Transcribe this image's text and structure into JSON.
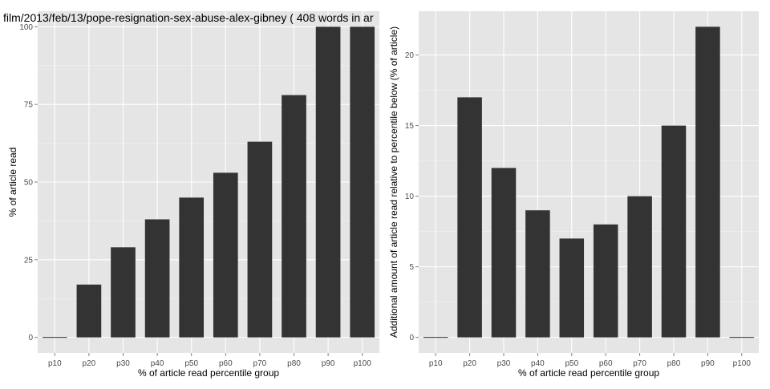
{
  "chart_data": [
    {
      "type": "bar",
      "title": "film/2013/feb/13/pope-resignation-sex-abuse-alex-gibney ( 408 words in ar",
      "xlabel": "% of article read percentile group",
      "ylabel": "% of article read",
      "categories": [
        "p10",
        "p20",
        "p30",
        "p40",
        "p50",
        "p60",
        "p70",
        "p80",
        "p90",
        "p100"
      ],
      "values": [
        0,
        17,
        29,
        38,
        45,
        53,
        63,
        78,
        100,
        100
      ],
      "ylim": [
        -5,
        105
      ],
      "yticks": [
        0,
        25,
        50,
        75,
        100
      ],
      "grid": true,
      "colors": {
        "bar": "#333333",
        "panel": "#e5e5e5",
        "grid_major": "#ffffff",
        "grid_minor": "#f2f2f2"
      }
    },
    {
      "type": "bar",
      "title": "",
      "xlabel": "% of article read percentile group",
      "ylabel": "Additional amount of article read relative to percentile below (% of article)",
      "categories": [
        "p10",
        "p20",
        "p30",
        "p40",
        "p50",
        "p60",
        "p70",
        "p80",
        "p90",
        "p100"
      ],
      "values": [
        0,
        17,
        12,
        9,
        7,
        8,
        10,
        15,
        22,
        0
      ],
      "ylim": [
        -1.1,
        23.1
      ],
      "yticks": [
        0,
        5,
        10,
        15,
        20
      ],
      "grid": true,
      "colors": {
        "bar": "#333333",
        "panel": "#e5e5e5",
        "grid_major": "#ffffff",
        "grid_minor": "#f2f2f2"
      }
    }
  ]
}
